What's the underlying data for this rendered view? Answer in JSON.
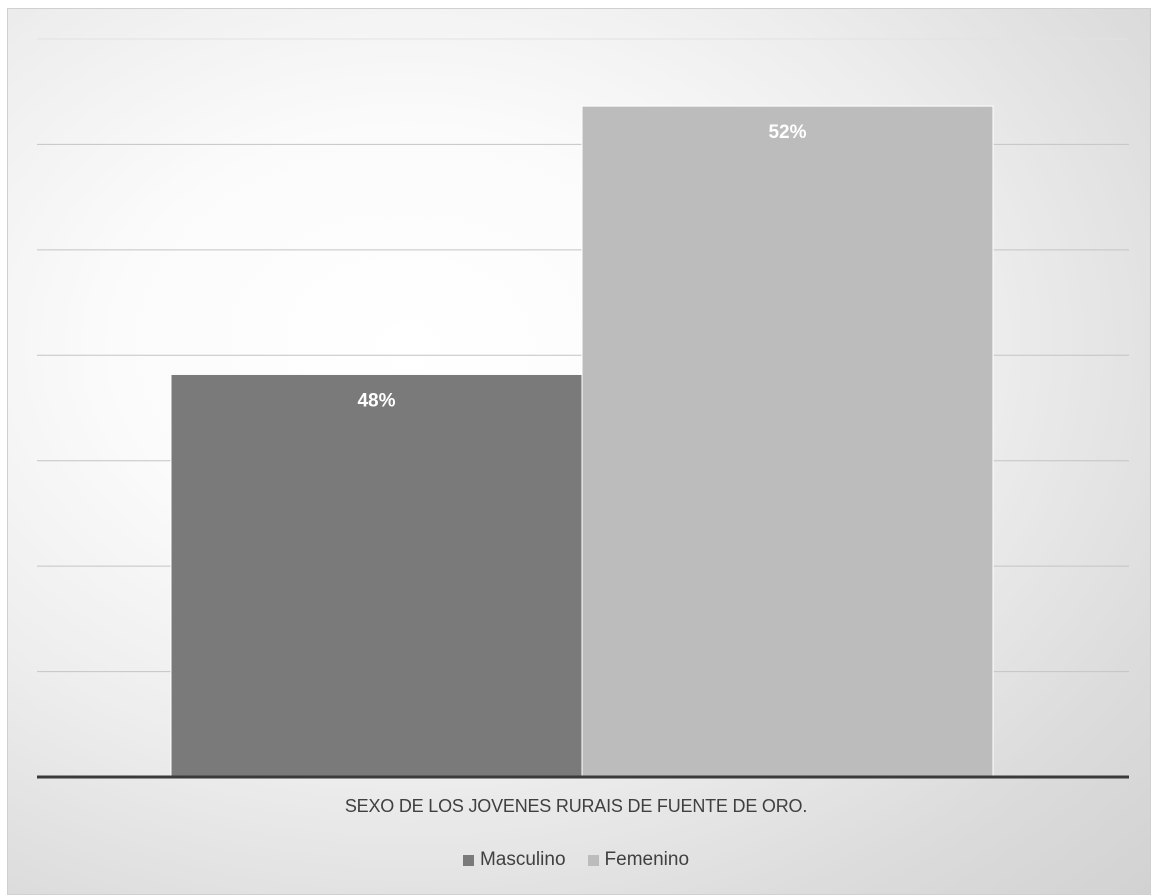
{
  "chart_data": {
    "type": "bar",
    "category": "SEXO DE LOS JOVENES RURAIS DE FUENTE DE ORO.",
    "series": [
      {
        "name": "Masculino",
        "value": 48,
        "label": "48%",
        "color": "#7a7a7a"
      },
      {
        "name": "Femenino",
        "value": 52,
        "label": "52%",
        "color": "#bcbcbc"
      }
    ],
    "ylim": [
      42,
      53
    ],
    "grid": true,
    "legend_position": "bottom"
  }
}
